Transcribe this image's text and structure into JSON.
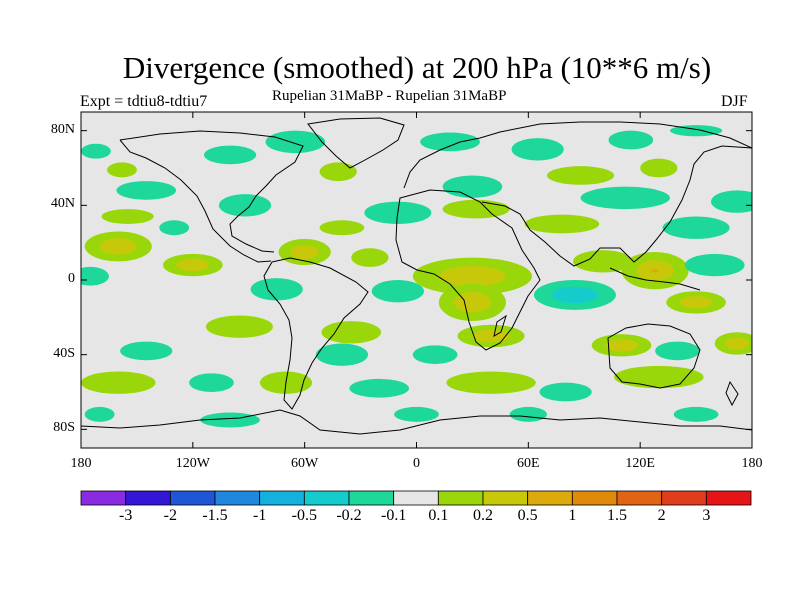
{
  "title": "Divergence (smoothed) at 200 hPa (10**6 m/s)",
  "experiment_label": "Expt = tdtiu8-tdtiu7",
  "subtitle": "Rupelian  31MaBP - Rupelian  31MaBP",
  "season": "DJF",
  "chart_data": {
    "type": "heatmap",
    "title": "Divergence (smoothed) at 200 hPa (10**6 m/s)",
    "xlim": [
      -180,
      180
    ],
    "ylim": [
      -90,
      90
    ],
    "lat_ticks": [
      {
        "value": 80,
        "label": "80N"
      },
      {
        "value": 40,
        "label": "40N"
      },
      {
        "value": 0,
        "label": "0"
      },
      {
        "value": -40,
        "label": "40S"
      },
      {
        "value": -80,
        "label": "80S"
      }
    ],
    "lon_ticks": [
      {
        "value": -180,
        "label": "180"
      },
      {
        "value": -120,
        "label": "120W"
      },
      {
        "value": -60,
        "label": "60W"
      },
      {
        "value": 0,
        "label": "0"
      },
      {
        "value": 60,
        "label": "60E"
      },
      {
        "value": 120,
        "label": "120E"
      },
      {
        "value": 180,
        "label": "180"
      }
    ],
    "colorbar": {
      "colors": [
        "#8a2be2",
        "#3316d6",
        "#1f56d6",
        "#1f88de",
        "#14b0de",
        "#14cccc",
        "#1ed79a",
        "#e6e6e6",
        "#9ad70a",
        "#c8c80a",
        "#dcaa0a",
        "#e08a0a",
        "#e06414",
        "#e03c1e",
        "#e61414"
      ],
      "boundaries": [
        "-3",
        "-2",
        "-1.5",
        "-1",
        "-0.5",
        "-0.2",
        "-0.1",
        "0.1",
        "0.2",
        "0.5",
        "1",
        "1.5",
        "2",
        "3"
      ]
    },
    "features": [
      {
        "lon": -172,
        "lat": 69,
        "rx": 8,
        "ry": 4,
        "level": "neg_low"
      },
      {
        "lon": -100,
        "lat": 67,
        "rx": 14,
        "ry": 5,
        "level": "neg_low"
      },
      {
        "lon": -65,
        "lat": 74,
        "rx": 16,
        "ry": 6,
        "level": "neg_low"
      },
      {
        "lon": 18,
        "lat": 74,
        "rx": 16,
        "ry": 5,
        "level": "neg_low"
      },
      {
        "lon": 65,
        "lat": 70,
        "rx": 14,
        "ry": 6,
        "level": "neg_low"
      },
      {
        "lon": 115,
        "lat": 75,
        "rx": 12,
        "ry": 5,
        "level": "neg_low"
      },
      {
        "lon": 150,
        "lat": 80,
        "rx": 14,
        "ry": 3,
        "level": "neg_low"
      },
      {
        "lon": 88,
        "lat": 56,
        "rx": 18,
        "ry": 5,
        "level": "pos_low"
      },
      {
        "lon": 130,
        "lat": 60,
        "rx": 10,
        "ry": 5,
        "level": "pos_low"
      },
      {
        "lon": -158,
        "lat": 59,
        "rx": 8,
        "ry": 4,
        "level": "pos_low"
      },
      {
        "lon": -42,
        "lat": 58,
        "rx": 10,
        "ry": 5,
        "level": "pos_low"
      },
      {
        "lon": 172,
        "lat": 42,
        "rx": 14,
        "ry": 6,
        "level": "neg_low"
      },
      {
        "lon": 112,
        "lat": 44,
        "rx": 24,
        "ry": 6,
        "level": "neg_low"
      },
      {
        "lon": -145,
        "lat": 48,
        "rx": 16,
        "ry": 5,
        "level": "neg_low"
      },
      {
        "lon": -92,
        "lat": 40,
        "rx": 14,
        "ry": 6,
        "level": "neg_low"
      },
      {
        "lon": -10,
        "lat": 36,
        "rx": 18,
        "ry": 6,
        "level": "neg_low"
      },
      {
        "lon": 30,
        "lat": 50,
        "rx": 16,
        "ry": 6,
        "level": "neg_low"
      },
      {
        "lon": 32,
        "lat": 38,
        "rx": 18,
        "ry": 5,
        "level": "pos_low"
      },
      {
        "lon": -155,
        "lat": 34,
        "rx": 14,
        "ry": 4,
        "level": "pos_low"
      },
      {
        "lon": -40,
        "lat": 28,
        "rx": 12,
        "ry": 4,
        "level": "pos_low"
      },
      {
        "lon": 78,
        "lat": 30,
        "rx": 20,
        "ry": 5,
        "level": "pos_low"
      },
      {
        "lon": -130,
        "lat": 28,
        "rx": 8,
        "ry": 4,
        "level": "neg_low"
      },
      {
        "lon": 150,
        "lat": 28,
        "rx": 18,
        "ry": 6,
        "level": "neg_low"
      },
      {
        "lon": -160,
        "lat": 18,
        "rx": 18,
        "ry": 8,
        "level": "pos_mid"
      },
      {
        "lon": -120,
        "lat": 8,
        "rx": 16,
        "ry": 6,
        "level": "pos_mid"
      },
      {
        "lon": -60,
        "lat": 15,
        "rx": 14,
        "ry": 7,
        "level": "pos_mid"
      },
      {
        "lon": -25,
        "lat": 12,
        "rx": 10,
        "ry": 5,
        "level": "pos_low"
      },
      {
        "lon": 30,
        "lat": 2,
        "rx": 32,
        "ry": 10,
        "level": "pos_mid"
      },
      {
        "lon": 100,
        "lat": 10,
        "rx": 16,
        "ry": 6,
        "level": "pos_low"
      },
      {
        "lon": 128,
        "lat": 5,
        "rx": 18,
        "ry": 10,
        "level": "pos_high"
      },
      {
        "lon": -175,
        "lat": 2,
        "rx": 10,
        "ry": 5,
        "level": "neg_low"
      },
      {
        "lon": -75,
        "lat": -5,
        "rx": 14,
        "ry": 6,
        "level": "neg_low"
      },
      {
        "lon": -10,
        "lat": -6,
        "rx": 14,
        "ry": 6,
        "level": "neg_low"
      },
      {
        "lon": 85,
        "lat": -8,
        "rx": 22,
        "ry": 8,
        "level": "neg_mid"
      },
      {
        "lon": 160,
        "lat": 8,
        "rx": 16,
        "ry": 6,
        "level": "neg_low"
      },
      {
        "lon": 30,
        "lat": -12,
        "rx": 18,
        "ry": 10,
        "level": "pos_mid"
      },
      {
        "lon": 150,
        "lat": -12,
        "rx": 16,
        "ry": 6,
        "level": "pos_mid"
      },
      {
        "lon": -95,
        "lat": -25,
        "rx": 18,
        "ry": 6,
        "level": "pos_low"
      },
      {
        "lon": -35,
        "lat": -28,
        "rx": 16,
        "ry": 6,
        "level": "pos_low"
      },
      {
        "lon": 40,
        "lat": -30,
        "rx": 18,
        "ry": 6,
        "level": "pos_mid"
      },
      {
        "lon": 110,
        "lat": -35,
        "rx": 16,
        "ry": 6,
        "level": "pos_mid"
      },
      {
        "lon": 172,
        "lat": -34,
        "rx": 12,
        "ry": 6,
        "level": "pos_mid"
      },
      {
        "lon": -145,
        "lat": -38,
        "rx": 14,
        "ry": 5,
        "level": "neg_low"
      },
      {
        "lon": -40,
        "lat": -40,
        "rx": 14,
        "ry": 6,
        "level": "neg_low"
      },
      {
        "lon": 10,
        "lat": -40,
        "rx": 12,
        "ry": 5,
        "level": "neg_low"
      },
      {
        "lon": 140,
        "lat": -38,
        "rx": 12,
        "ry": 5,
        "level": "neg_low"
      },
      {
        "lon": -160,
        "lat": -55,
        "rx": 20,
        "ry": 6,
        "level": "pos_low"
      },
      {
        "lon": -70,
        "lat": -55,
        "rx": 14,
        "ry": 6,
        "level": "pos_low"
      },
      {
        "lon": 40,
        "lat": -55,
        "rx": 24,
        "ry": 6,
        "level": "pos_low"
      },
      {
        "lon": 130,
        "lat": -52,
        "rx": 24,
        "ry": 6,
        "level": "pos_low"
      },
      {
        "lon": -110,
        "lat": -55,
        "rx": 12,
        "ry": 5,
        "level": "neg_low"
      },
      {
        "lon": -20,
        "lat": -58,
        "rx": 16,
        "ry": 5,
        "level": "neg_low"
      },
      {
        "lon": 80,
        "lat": -60,
        "rx": 14,
        "ry": 5,
        "level": "neg_low"
      },
      {
        "lon": -170,
        "lat": -72,
        "rx": 8,
        "ry": 4,
        "level": "neg_low"
      },
      {
        "lon": -100,
        "lat": -75,
        "rx": 16,
        "ry": 4,
        "level": "neg_low"
      },
      {
        "lon": 0,
        "lat": -72,
        "rx": 12,
        "ry": 4,
        "level": "neg_low"
      },
      {
        "lon": 60,
        "lat": -72,
        "rx": 10,
        "ry": 4,
        "level": "neg_low"
      },
      {
        "lon": 150,
        "lat": -72,
        "rx": 12,
        "ry": 4,
        "level": "neg_low"
      }
    ]
  }
}
